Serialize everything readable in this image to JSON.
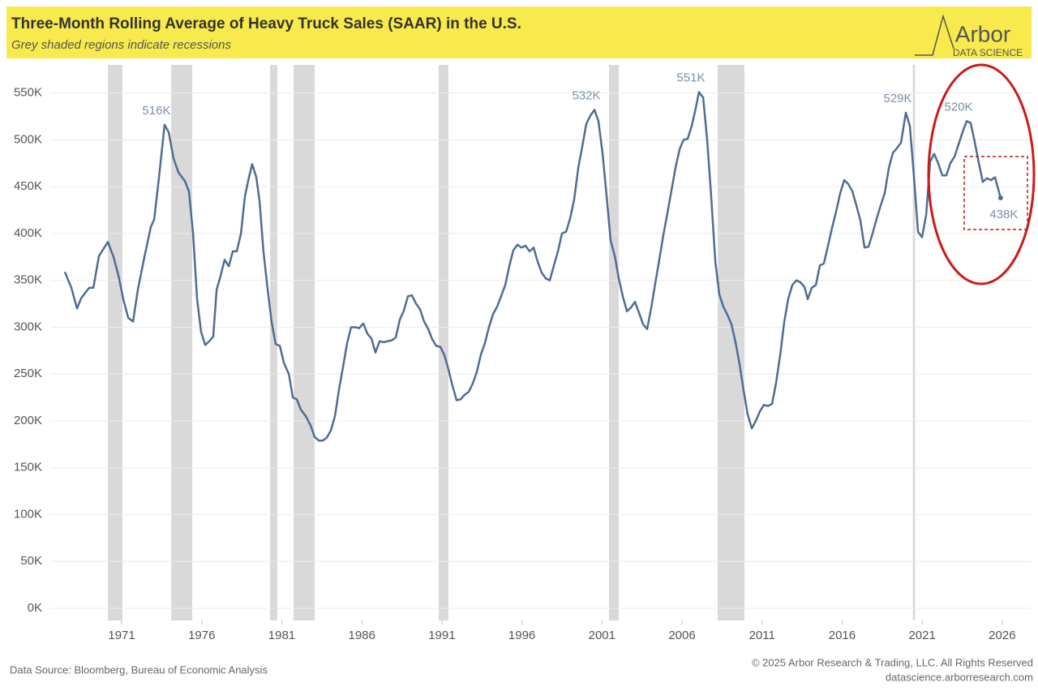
{
  "chart_data": {
    "type": "line",
    "title": "Three-Month Rolling Average of Heavy Truck Sales (SAAR) in the U.S.",
    "subtitle": "Grey shaded regions indicate recessions",
    "logo": {
      "name": "Arbor",
      "tagline": "DATA SCIENCE"
    },
    "source": "Data Source: Bloomberg, Bureau of Economic Analysis",
    "copyright": "© 2025 Arbor Research & Trading, LLC. All Rights Reserved",
    "website": "datascience.arborresearch.com",
    "color": "#4f6d94",
    "recession_color": "#d9d9d9",
    "grid": true,
    "xlim": [
      1966.54,
      2027.83
    ],
    "xticks": [
      1971,
      1976,
      1981,
      1986,
      1991,
      1996,
      2001,
      2006,
      2011,
      2016,
      2021,
      2026
    ],
    "ylim": [
      -13000,
      580000
    ],
    "yticks": [
      {
        "value": 0,
        "label": "0K"
      },
      {
        "value": 50000,
        "label": "50K"
      },
      {
        "value": 100000,
        "label": "100K"
      },
      {
        "value": 150000,
        "label": "150K"
      },
      {
        "value": 200000,
        "label": "200K"
      },
      {
        "value": 250000,
        "label": "250K"
      },
      {
        "value": 300000,
        "label": "300K"
      },
      {
        "value": 350000,
        "label": "350K"
      },
      {
        "value": 400000,
        "label": "400K"
      },
      {
        "value": 450000,
        "label": "450K"
      },
      {
        "value": 500000,
        "label": "500K"
      },
      {
        "value": 550000,
        "label": "550K"
      }
    ],
    "recessions": [
      [
        1970.14,
        1971.05
      ],
      [
        1974.09,
        1975.41
      ],
      [
        1980.27,
        1980.72
      ],
      [
        1981.74,
        1983.05
      ],
      [
        1990.8,
        1991.41
      ],
      [
        2001.44,
        2002.05
      ],
      [
        2008.23,
        2009.9
      ],
      [
        2020.42,
        2020.56
      ]
    ],
    "annotations": [
      {
        "x": 1973.68,
        "y": 516000,
        "label": "516K",
        "position": "above"
      },
      {
        "x": 2000.53,
        "y": 532000,
        "label": "532K",
        "position": "above"
      },
      {
        "x": 2007.06,
        "y": 551000,
        "label": "551K",
        "position": "above"
      },
      {
        "x": 2019.98,
        "y": 529000,
        "label": "529K",
        "position": "above"
      },
      {
        "x": 2023.78,
        "y": 520000,
        "label": "520K",
        "position": "above"
      },
      {
        "x": 2025.9,
        "y": 438000,
        "label": "438K",
        "position": "below"
      }
    ],
    "x": [
      1967.45,
      1967.86,
      1968.21,
      1968.47,
      1968.97,
      1969.23,
      1969.58,
      1970.14,
      1970.49,
      1970.8,
      1971.1,
      1971.41,
      1971.71,
      1972.01,
      1972.42,
      1972.82,
      1973.03,
      1973.33,
      1973.68,
      1973.94,
      1974.24,
      1974.55,
      1974.95,
      1975.2,
      1975.46,
      1975.71,
      1975.96,
      1976.22,
      1976.47,
      1976.72,
      1976.93,
      1977.18,
      1977.43,
      1977.69,
      1977.94,
      1978.19,
      1978.45,
      1978.7,
      1978.95,
      1979.15,
      1979.41,
      1979.61,
      1979.86,
      1980.12,
      1980.37,
      1980.62,
      1980.88,
      1981.13,
      1981.44,
      1981.69,
      1981.94,
      1982.19,
      1982.5,
      1982.8,
      1983.05,
      1983.31,
      1983.56,
      1983.81,
      1984.07,
      1984.32,
      1984.57,
      1984.83,
      1985.08,
      1985.33,
      1985.59,
      1985.84,
      1986.09,
      1986.35,
      1986.6,
      1986.85,
      1987.11,
      1987.36,
      1987.61,
      1987.87,
      1988.12,
      1988.37,
      1988.63,
      1988.88,
      1989.13,
      1989.39,
      1989.64,
      1989.89,
      1990.15,
      1990.4,
      1990.65,
      1990.91,
      1991.16,
      1991.41,
      1991.67,
      1991.92,
      1992.17,
      1992.43,
      1992.68,
      1992.93,
      1993.18,
      1993.44,
      1993.69,
      1993.94,
      1994.2,
      1994.45,
      1994.7,
      1994.96,
      1995.21,
      1995.46,
      1995.72,
      1995.97,
      1996.22,
      1996.48,
      1996.73,
      1996.98,
      1997.24,
      1997.49,
      1997.74,
      1998.0,
      1998.25,
      1998.5,
      1998.76,
      1999.01,
      1999.26,
      1999.52,
      1999.77,
      2000.02,
      2000.28,
      2000.53,
      2000.78,
      2001.04,
      2001.29,
      2001.54,
      2001.8,
      2002.05,
      2002.3,
      2002.56,
      2002.81,
      2003.06,
      2003.32,
      2003.57,
      2003.82,
      2004.07,
      2004.33,
      2004.58,
      2004.83,
      2005.09,
      2005.34,
      2005.59,
      2005.85,
      2006.1,
      2006.35,
      2006.61,
      2006.86,
      2007.06,
      2007.32,
      2007.57,
      2007.82,
      2008.08,
      2008.33,
      2008.58,
      2008.84,
      2009.09,
      2009.34,
      2009.6,
      2009.85,
      2010.1,
      2010.36,
      2010.61,
      2010.86,
      2011.11,
      2011.37,
      2011.62,
      2011.87,
      2012.13,
      2012.38,
      2012.63,
      2012.89,
      2013.14,
      2013.39,
      2013.65,
      2013.85,
      2014.1,
      2014.36,
      2014.61,
      2014.86,
      2015.12,
      2015.37,
      2015.62,
      2015.88,
      2016.13,
      2016.38,
      2016.64,
      2016.89,
      2017.14,
      2017.4,
      2017.65,
      2017.9,
      2018.16,
      2018.41,
      2018.66,
      2018.92,
      2019.17,
      2019.42,
      2019.68,
      2019.98,
      2020.23,
      2020.49,
      2020.74,
      2020.99,
      2021.25,
      2021.5,
      2021.75,
      2022.0,
      2022.26,
      2022.51,
      2022.76,
      2023.02,
      2023.27,
      2023.52,
      2023.78,
      2024.03,
      2024.28,
      2024.54,
      2024.79,
      2025.04,
      2025.3,
      2025.55,
      2025.9
    ],
    "values": [
      359000,
      342000,
      320000,
      331000,
      342000,
      342000,
      376000,
      391000,
      375000,
      355000,
      330000,
      310000,
      306000,
      340000,
      375000,
      407000,
      415000,
      460000,
      516000,
      508000,
      480000,
      465000,
      456000,
      445000,
      400000,
      330000,
      295000,
      281000,
      285000,
      290000,
      340000,
      355000,
      372000,
      365000,
      381000,
      381000,
      400000,
      440000,
      460000,
      474000,
      460000,
      435000,
      380000,
      340000,
      305000,
      282000,
      280000,
      262000,
      250000,
      225000,
      223000,
      212000,
      205000,
      195000,
      183000,
      179000,
      179000,
      182000,
      190000,
      205000,
      233000,
      258000,
      283000,
      300000,
      300000,
      299000,
      304000,
      293000,
      288000,
      273000,
      285000,
      284000,
      285000,
      286000,
      289000,
      308000,
      318000,
      333000,
      334000,
      325000,
      319000,
      306000,
      298000,
      287000,
      280000,
      279000,
      270000,
      255000,
      237000,
      222000,
      223000,
      228000,
      231000,
      240000,
      252000,
      271000,
      283000,
      300000,
      314000,
      322000,
      333000,
      345000,
      365000,
      382000,
      388000,
      385000,
      387000,
      381000,
      385000,
      370000,
      358000,
      352000,
      350000,
      366000,
      381000,
      400000,
      402000,
      416000,
      436000,
      470000,
      493000,
      517000,
      526000,
      532000,
      520000,
      485000,
      440000,
      393000,
      376000,
      352000,
      333000,
      317000,
      321000,
      327000,
      315000,
      303000,
      298000,
      320000,
      347000,
      372000,
      398000,
      422000,
      446000,
      470000,
      490000,
      500000,
      501000,
      515000,
      534000,
      551000,
      545000,
      500000,
      440000,
      370000,
      335000,
      322000,
      313000,
      303000,
      284000,
      260000,
      232000,
      207000,
      192000,
      200000,
      210000,
      217000,
      216000,
      218000,
      240000,
      270000,
      305000,
      330000,
      345000,
      350000,
      348000,
      343000,
      330000,
      342000,
      345000,
      366000,
      368000,
      387000,
      406000,
      423000,
      443000,
      457000,
      453000,
      445000,
      430000,
      414000,
      385000,
      386000,
      400000,
      416000,
      430000,
      443000,
      470000,
      486000,
      491000,
      497000,
      529000,
      515000,
      460000,
      402000,
      396000,
      420000,
      477000,
      485000,
      475000,
      462000,
      462000,
      475000,
      482000,
      495000,
      508000,
      520000,
      518000,
      498000,
      475000,
      455000,
      459000,
      457000,
      460000,
      438000
    ]
  }
}
